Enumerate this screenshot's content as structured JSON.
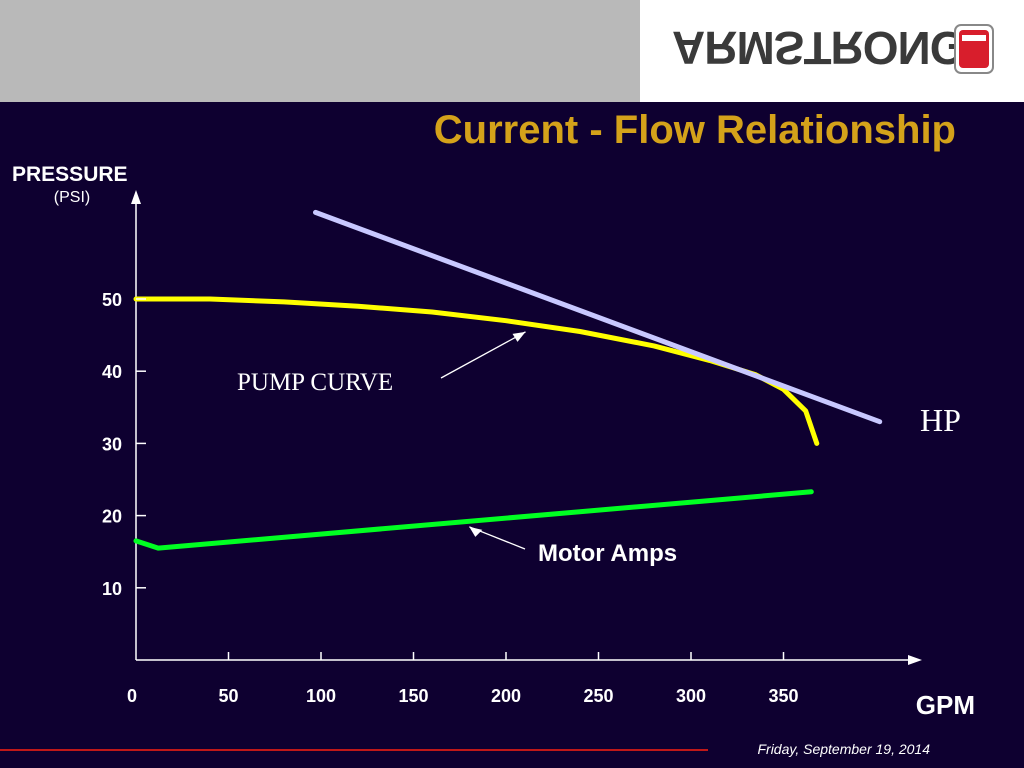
{
  "header": {
    "brand": "ARMSTRONG",
    "brand_color": "#3a3a3a",
    "logo_color": "#d81e2c"
  },
  "title": "Current - Flow Relationship",
  "chart_data": {
    "type": "line",
    "title": "Current - Flow Relationship",
    "ylabel": "PRESSURE",
    "yunit": "(PSI)",
    "xlabel": "GPM",
    "xlim": [
      0,
      400
    ],
    "ylim": [
      0,
      60
    ],
    "xticks": [
      0,
      50,
      100,
      150,
      200,
      250,
      300,
      350
    ],
    "yticks": [
      10,
      20,
      30,
      40,
      50
    ],
    "grid": false,
    "series": [
      {
        "name": "PUMP CURVE",
        "color": "#ffff00",
        "x": [
          0,
          40,
          80,
          120,
          160,
          200,
          240,
          280,
          310,
          335,
          350,
          362,
          368
        ],
        "y": [
          50,
          50,
          49.6,
          49,
          48.2,
          47,
          45.5,
          43.5,
          41.5,
          39.5,
          37.5,
          34.5,
          30
        ]
      },
      {
        "name": "HP",
        "color": "#c8c8ff",
        "x": [
          97,
          402
        ],
        "y": [
          62,
          33
        ]
      },
      {
        "name": "Motor Amps",
        "color": "#00ff22",
        "x": [
          0,
          12,
          365
        ],
        "y": [
          16.5,
          15.5,
          23.3
        ]
      }
    ],
    "annotations": [
      {
        "text": "PUMP CURVE",
        "color": "#ffffff",
        "target_x": 210,
        "target_y": 46
      },
      {
        "text": "HP",
        "color": "#ffffff"
      },
      {
        "text": "Motor Amps",
        "color": "#ffffff",
        "target_x": 178,
        "target_y": 19
      }
    ]
  },
  "footer": {
    "date": "Friday, September 19, 2014"
  }
}
